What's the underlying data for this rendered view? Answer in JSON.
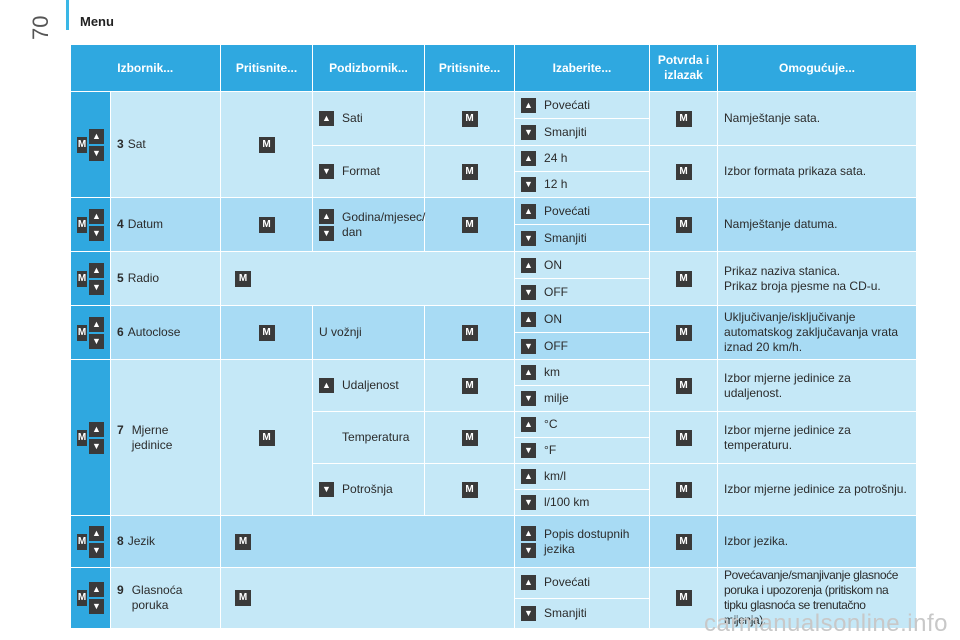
{
  "page": {
    "number": "70",
    "section": "Menu",
    "watermark": "carmanualsonline.info"
  },
  "header": [
    "Izbornik...",
    "Pritisnite...",
    "Podizbornik...",
    "Pritisnite...",
    "Izaberite...",
    "Potvrda i izlazak",
    "Omogućuje..."
  ],
  "icons": {
    "up": "▲",
    "down": "▼",
    "m": "M"
  },
  "rows": {
    "sat": {
      "num": "3",
      "label": "Sat",
      "sub1": "Sati",
      "sub1_opts": [
        "Povećati",
        "Smanjiti"
      ],
      "sub1_desc": "Namještanje sata.",
      "sub2": "Format",
      "sub2_opts": [
        "24 h",
        "12 h"
      ],
      "sub2_desc": "Izbor formata prikaza sata."
    },
    "datum": {
      "num": "4",
      "label": "Datum",
      "sub": "Godina/mjesec/ dan",
      "opts": [
        "Povećati",
        "Smanjiti"
      ],
      "desc": "Namještanje datuma."
    },
    "radio": {
      "num": "5",
      "label": "Radio",
      "opts": [
        "ON",
        "OFF"
      ],
      "desc1": "Prikaz naziva stanica.",
      "desc2": "Prikaz broja pjesme na CD-u."
    },
    "autoclose": {
      "num": "6",
      "label": "Autoclose",
      "sub": "U vožnji",
      "opts": [
        "ON",
        "OFF"
      ],
      "desc": "Uključivanje/isključivanje automatskog zaključavanja vrata iznad 20 km/h."
    },
    "mjerne": {
      "num": "7",
      "label": "Mjerne jedinice",
      "sub1": "Udaljenost",
      "sub1_opts": [
        "km",
        "milje"
      ],
      "sub1_desc": "Izbor mjerne jedinice za udaljenost.",
      "sub2": "Temperatura",
      "sub2_opts": [
        "°C",
        "°F"
      ],
      "sub2_desc": "Izbor mjerne jedinice za temperaturu.",
      "sub3": "Potrošnja",
      "sub3_opts": [
        "km/l",
        "l/100 km"
      ],
      "sub3_desc": "Izbor mjerne jedinice za potrošnju."
    },
    "jezik": {
      "num": "8",
      "label": "Jezik",
      "opt": "Popis dostupnih jezika",
      "desc": "Izbor jezika."
    },
    "glasnoca": {
      "num": "9",
      "label": "Glasnoća poruka",
      "opts": [
        "Povećati",
        "Smanjiti"
      ],
      "desc": "Povećavanje/smanjivanje glasnoće poruka i upozorenja (pritiskom na tipku glasnoća se trenutačno mijenja)."
    }
  },
  "colors": {
    "header": "#2fa8e0",
    "row_light": "#c5e8f7",
    "row_dark": "#a8dbf4",
    "button": "#3a3a3a"
  }
}
